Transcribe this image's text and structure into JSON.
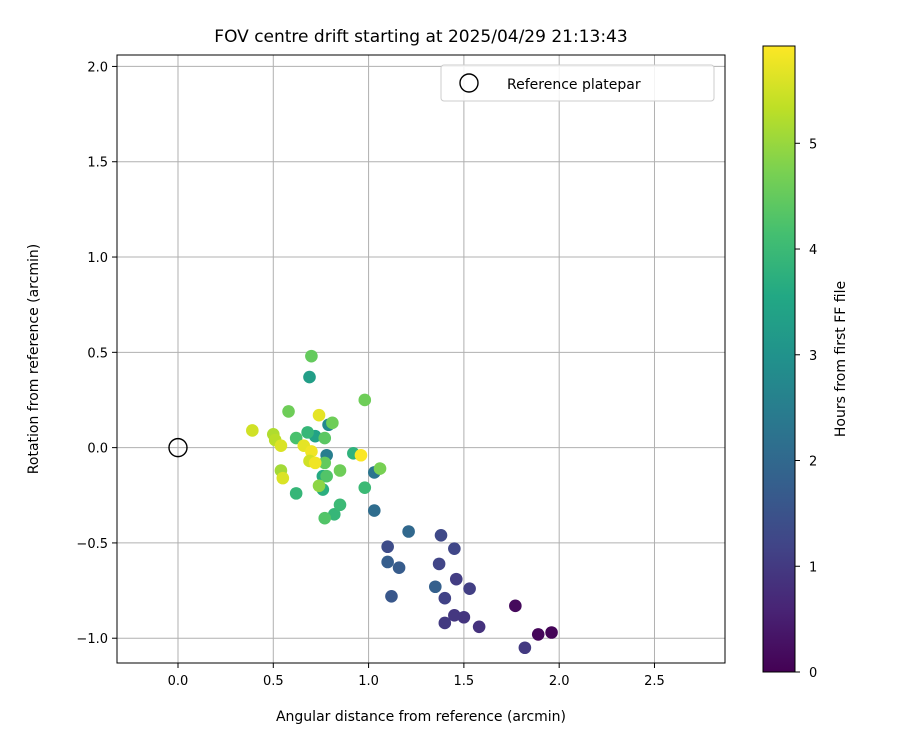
{
  "chart_data": {
    "type": "scatter",
    "title": "FOV centre drift starting at 2025/04/29 21:13:43",
    "xlabel": "Angular distance from reference (arcmin)",
    "ylabel": "Rotation from reference (arcmin)",
    "xlim": [
      -0.32,
      2.87
    ],
    "ylim": [
      -1.13,
      2.06
    ],
    "xticks": [
      0.0,
      0.5,
      1.0,
      1.5,
      2.0,
      2.5
    ],
    "xtick_labels": [
      "0.0",
      "0.5",
      "1.0",
      "1.5",
      "2.0",
      "2.5"
    ],
    "yticks": [
      -1.0,
      -0.5,
      0.0,
      0.5,
      1.0,
      1.5,
      2.0
    ],
    "ytick_labels": [
      "−1.0",
      "−0.5",
      "0.0",
      "0.5",
      "1.0",
      "1.5",
      "2.0"
    ],
    "grid": true,
    "legend": {
      "position": "top-right",
      "entries": [
        "Reference platepar"
      ]
    },
    "reference_point": {
      "x": 0.0,
      "y": 0.0
    },
    "colorbar": {
      "label": "Hours from first FF file",
      "range": [
        0,
        5.92
      ],
      "ticks": [
        0,
        1,
        2,
        3,
        4,
        5
      ],
      "tick_labels": [
        "0",
        "1",
        "2",
        "3",
        "4",
        "5"
      ],
      "colormap": "viridis"
    },
    "points": [
      {
        "x": 1.96,
        "y": -0.97,
        "c": 0.05
      },
      {
        "x": 1.89,
        "y": -0.98,
        "c": 0.1
      },
      {
        "x": 1.77,
        "y": -0.83,
        "c": 0.15
      },
      {
        "x": 1.82,
        "y": -1.05,
        "c": 1.0
      },
      {
        "x": 1.58,
        "y": -0.94,
        "c": 0.85
      },
      {
        "x": 1.5,
        "y": -0.89,
        "c": 0.9
      },
      {
        "x": 1.45,
        "y": -0.88,
        "c": 0.95
      },
      {
        "x": 1.4,
        "y": -0.92,
        "c": 1.0
      },
      {
        "x": 1.53,
        "y": -0.74,
        "c": 1.1
      },
      {
        "x": 1.46,
        "y": -0.69,
        "c": 1.05
      },
      {
        "x": 1.4,
        "y": -0.79,
        "c": 1.15
      },
      {
        "x": 1.35,
        "y": -0.73,
        "c": 1.8
      },
      {
        "x": 1.37,
        "y": -0.61,
        "c": 1.2
      },
      {
        "x": 1.45,
        "y": -0.53,
        "c": 1.25
      },
      {
        "x": 1.38,
        "y": -0.46,
        "c": 1.3
      },
      {
        "x": 1.1,
        "y": -0.52,
        "c": 1.35
      },
      {
        "x": 1.12,
        "y": -0.78,
        "c": 1.6
      },
      {
        "x": 1.16,
        "y": -0.63,
        "c": 1.7
      },
      {
        "x": 1.1,
        "y": -0.6,
        "c": 1.75
      },
      {
        "x": 1.21,
        "y": -0.44,
        "c": 2.0
      },
      {
        "x": 1.03,
        "y": -0.33,
        "c": 2.1
      },
      {
        "x": 1.03,
        "y": -0.13,
        "c": 2.3
      },
      {
        "x": 0.78,
        "y": -0.04,
        "c": 2.5
      },
      {
        "x": 0.79,
        "y": 0.12,
        "c": 2.8
      },
      {
        "x": 0.69,
        "y": 0.37,
        "c": 3.3
      },
      {
        "x": 0.72,
        "y": 0.06,
        "c": 3.4
      },
      {
        "x": 0.76,
        "y": -0.15,
        "c": 3.6
      },
      {
        "x": 0.76,
        "y": -0.22,
        "c": 3.7
      },
      {
        "x": 0.62,
        "y": -0.24,
        "c": 3.9
      },
      {
        "x": 0.82,
        "y": -0.35,
        "c": 3.9
      },
      {
        "x": 0.85,
        "y": -0.3,
        "c": 4.0
      },
      {
        "x": 0.77,
        "y": -0.37,
        "c": 4.3
      },
      {
        "x": 0.92,
        "y": -0.03,
        "c": 3.8
      },
      {
        "x": 0.98,
        "y": -0.21,
        "c": 4.0
      },
      {
        "x": 0.68,
        "y": 0.08,
        "c": 3.9
      },
      {
        "x": 0.62,
        "y": 0.05,
        "c": 4.2
      },
      {
        "x": 0.77,
        "y": 0.05,
        "c": 4.4
      },
      {
        "x": 0.77,
        "y": -0.08,
        "c": 4.5
      },
      {
        "x": 0.78,
        "y": -0.15,
        "c": 4.3
      },
      {
        "x": 0.7,
        "y": 0.48,
        "c": 4.5
      },
      {
        "x": 0.58,
        "y": 0.19,
        "c": 4.6
      },
      {
        "x": 0.81,
        "y": 0.13,
        "c": 4.6
      },
      {
        "x": 0.85,
        "y": -0.12,
        "c": 4.6
      },
      {
        "x": 0.74,
        "y": -0.2,
        "c": 4.9
      },
      {
        "x": 0.98,
        "y": 0.25,
        "c": 4.6
      },
      {
        "x": 1.06,
        "y": -0.11,
        "c": 4.7
      },
      {
        "x": 0.39,
        "y": 0.09,
        "c": 5.5
      },
      {
        "x": 0.5,
        "y": 0.07,
        "c": 5.2
      },
      {
        "x": 0.51,
        "y": 0.04,
        "c": 5.3
      },
      {
        "x": 0.54,
        "y": 0.01,
        "c": 5.6
      },
      {
        "x": 0.54,
        "y": -0.12,
        "c": 5.1
      },
      {
        "x": 0.55,
        "y": -0.16,
        "c": 5.6
      },
      {
        "x": 0.66,
        "y": 0.01,
        "c": 5.7
      },
      {
        "x": 0.7,
        "y": -0.02,
        "c": 5.8
      },
      {
        "x": 0.69,
        "y": -0.07,
        "c": 5.5
      },
      {
        "x": 0.72,
        "y": -0.08,
        "c": 5.8
      },
      {
        "x": 0.74,
        "y": 0.17,
        "c": 5.7
      },
      {
        "x": 0.96,
        "y": -0.04,
        "c": 5.9
      }
    ]
  }
}
